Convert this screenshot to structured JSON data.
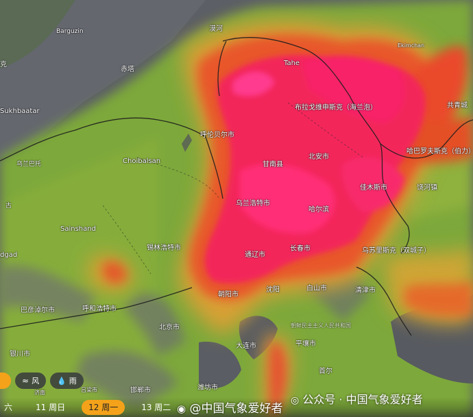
{
  "map": {
    "layer_colors": {
      "background": "#5a5d63",
      "mountain_gray": "#6b6e74",
      "land": "#7fae3a",
      "warm": "#d9b43a",
      "hot": "#e8551f",
      "extreme": "#f0265a",
      "peak": "#ff3a8f",
      "border": "#1e1e1e",
      "water": "#4d5056"
    },
    "labels": [
      {
        "id": "barguzin",
        "text": "Barguzin"
      },
      {
        "id": "mohe",
        "text": "漠河"
      },
      {
        "id": "chita",
        "text": "赤塔"
      },
      {
        "id": "tahe",
        "text": "Tahe"
      },
      {
        "id": "ekimchan",
        "text": "Ekimchan"
      },
      {
        "id": "sukhbaatar",
        "text": "Sukhbaatar"
      },
      {
        "id": "blagoveshchensk",
        "text": "布拉戈维申斯克（海兰泡）"
      },
      {
        "id": "gongqingcheng",
        "text": "共青城"
      },
      {
        "id": "hulunbuir",
        "text": "呼伦贝尔市"
      },
      {
        "id": "ulaanbaatar",
        "text": "乌兰巴托"
      },
      {
        "id": "choibalsan",
        "text": "Choibalsan"
      },
      {
        "id": "gannan",
        "text": "甘南县"
      },
      {
        "id": "beian",
        "text": "北安市"
      },
      {
        "id": "khabarovsk",
        "text": "哈巴罗夫斯克（伯力）"
      },
      {
        "id": "jiamusi",
        "text": "佳木斯市"
      },
      {
        "id": "raohe",
        "text": "饶河镇"
      },
      {
        "id": "ulanhot",
        "text": "乌兰浩特市"
      },
      {
        "id": "harbin",
        "text": "哈尔滨"
      },
      {
        "id": "sainshand",
        "text": "Sainshand"
      },
      {
        "id": "xilinhot",
        "text": "锡林浩特市"
      },
      {
        "id": "changchun",
        "text": "长春市"
      },
      {
        "id": "ussuriysk",
        "text": "乌苏里斯克（双城子）"
      },
      {
        "id": "tongliao",
        "text": "通辽市"
      },
      {
        "id": "gad",
        "text": "dgad"
      },
      {
        "id": "chaoyang",
        "text": "朝阳市"
      },
      {
        "id": "shenyang",
        "text": "沈阳"
      },
      {
        "id": "baishan",
        "text": "白山市"
      },
      {
        "id": "qingjin",
        "text": "清津市"
      },
      {
        "id": "bayannur",
        "text": "巴彦淖尔市"
      },
      {
        "id": "hohhot",
        "text": "呼和浩特市"
      },
      {
        "id": "beijing",
        "text": "北京市"
      },
      {
        "id": "dprk",
        "text": "朝鲜民主主义人民共和国"
      },
      {
        "id": "yinchuan",
        "text": "银川市"
      },
      {
        "id": "dalian",
        "text": "大连市"
      },
      {
        "id": "pyongyang",
        "text": "平壤市"
      },
      {
        "id": "seoul",
        "text": "首尔"
      },
      {
        "id": "handan",
        "text": "邯郸市"
      },
      {
        "id": "weifang",
        "text": "潍坊市"
      },
      {
        "id": "luliang",
        "text": "吕梁市"
      },
      {
        "id": "jinan",
        "text": "济南"
      },
      {
        "id": "ke",
        "text": "克"
      },
      {
        "id": "gu",
        "text": "古"
      }
    ]
  },
  "controls": {
    "wind_label": "风",
    "rain_label": "雨",
    "wind_icon": "wind-icon",
    "rain_icon": "rain-drop-icon"
  },
  "timeline": {
    "days": [
      {
        "label": "六"
      },
      {
        "label": "11 周日"
      },
      {
        "label": "12 周一",
        "active": true
      },
      {
        "label": "13 周二"
      }
    ]
  },
  "watermark": {
    "weibo": "@中国气象爱好者",
    "wechat": "公众号 · 中国气象爱好者"
  }
}
